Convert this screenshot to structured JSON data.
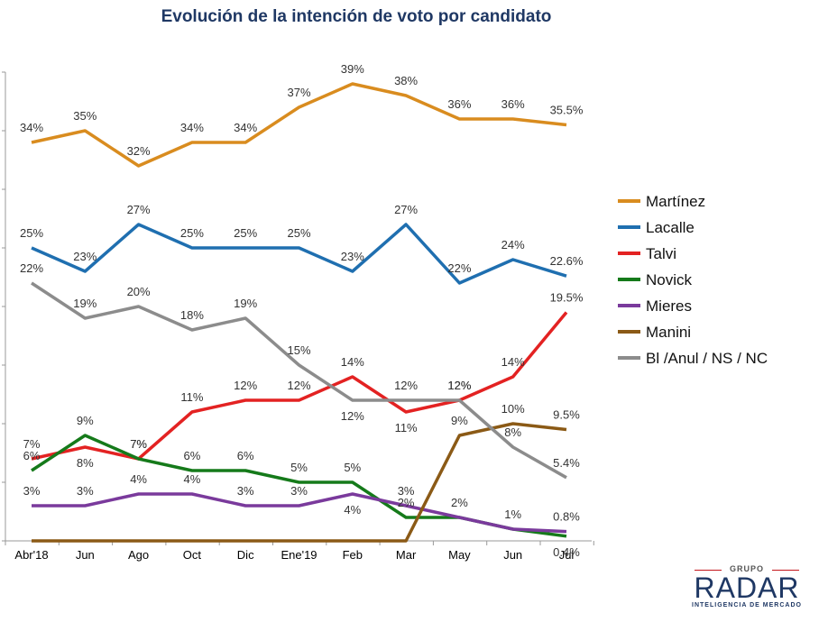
{
  "chart_data": {
    "type": "line",
    "title": "Evolución de la intención de voto por candidato",
    "categories": [
      "Abr'18",
      "Jun",
      "Ago",
      "Oct",
      "Dic",
      "Ene'19",
      "Feb",
      "Mar",
      "May",
      "Jun",
      "Jul"
    ],
    "ylim": [
      0,
      40
    ],
    "legend_position": "right",
    "series": [
      {
        "name": "Martínez",
        "color": "#d98c1f",
        "values": [
          34,
          35,
          32,
          34,
          34,
          37,
          39,
          38,
          36,
          36,
          35.5
        ],
        "labels": [
          "34%",
          "35%",
          "32%",
          "34%",
          "34%",
          "37%",
          "39%",
          "38%",
          "36%",
          "36%",
          "35.5%"
        ]
      },
      {
        "name": "Lacalle",
        "color": "#1f6fb0",
        "values": [
          25,
          23,
          27,
          25,
          25,
          25,
          23,
          27,
          22,
          24,
          22.6
        ],
        "labels": [
          "25%",
          "23%",
          "27%",
          "25%",
          "25%",
          "25%",
          "23%",
          "27%",
          "22%",
          "24%",
          "22.6%"
        ]
      },
      {
        "name": "Talvi",
        "color": "#e32222",
        "values": [
          7,
          8,
          7,
          11,
          12,
          12,
          14,
          11,
          12,
          14,
          19.5
        ],
        "labels": [
          "7%",
          "8%",
          "7%",
          "11%",
          "12%",
          "12%",
          "14%",
          "11%",
          "12%",
          "14%",
          "19.5%"
        ]
      },
      {
        "name": "Novick",
        "color": "#157a1a",
        "values": [
          6,
          9,
          7,
          6,
          6,
          5,
          5,
          2,
          2,
          1,
          0.4
        ],
        "labels": [
          "6%",
          "9%",
          "7%",
          "6%",
          "6%",
          "5%",
          "5%",
          "2%",
          "2%",
          "1%",
          "0.4%"
        ]
      },
      {
        "name": "Mieres",
        "color": "#7a3a9c",
        "values": [
          3,
          3,
          4,
          4,
          3,
          3,
          4,
          3,
          2,
          1,
          0.8
        ],
        "labels": [
          "3%",
          "3%",
          "4%",
          "4%",
          "3%",
          "3%",
          "4%",
          "3%",
          "",
          "",
          "0.8%"
        ]
      },
      {
        "name": "Manini",
        "color": "#8b5a16",
        "values": [
          0,
          0,
          0,
          0,
          0,
          0,
          0,
          0,
          9,
          10,
          9.5
        ],
        "labels": [
          "",
          "",
          "",
          "",
          "",
          "",
          "",
          "",
          "9%",
          "10%",
          "9.5%"
        ]
      },
      {
        "name": "Bl /Anul / NS / NC",
        "color": "#8c8c8c",
        "values": [
          22,
          19,
          20,
          18,
          19,
          15,
          12,
          12,
          12,
          8,
          5.4
        ],
        "labels": [
          "22%",
          "19%",
          "20%",
          "18%",
          "19%",
          "15%",
          "12%",
          "12%",
          "12%",
          "8%",
          "5.4%"
        ]
      }
    ]
  },
  "logo": {
    "top": "GRUPO",
    "main": "RADAR",
    "sub": "INTELIGENCIA DE MERCADO"
  }
}
